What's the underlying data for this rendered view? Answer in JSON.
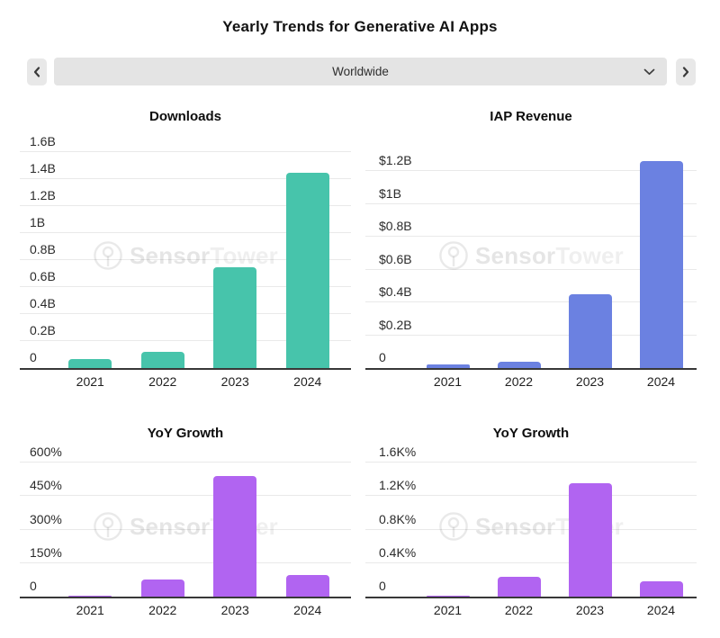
{
  "page": {
    "title": "Yearly Trends for Generative AI Apps"
  },
  "selector": {
    "value": "Worldwide",
    "prev_icon": "chevron-left",
    "next_icon": "chevron-right",
    "expand_icon": "chevron-down"
  },
  "watermark": {
    "part1": "Sensor",
    "part2": "Tower"
  },
  "colors": {
    "downloads_bar": "#47c4ab",
    "revenue_bar": "#6b81e1",
    "growth_bar": "#b164f1",
    "axis": "#383838",
    "gridline": "#e9e9e9"
  },
  "chart_data": [
    {
      "id": "downloads",
      "type": "bar",
      "title": "Downloads",
      "unit": "downloads (billions)",
      "categories": [
        "2021",
        "2022",
        "2023",
        "2024"
      ],
      "values": [
        0.07,
        0.12,
        0.75,
        1.45
      ],
      "bar_color": "#47c4ab",
      "ylim": [
        0,
        1.75
      ],
      "grid": true,
      "legend": "none",
      "yticks": [
        {
          "label": "1.6B",
          "value": 1.6
        },
        {
          "label": "1.4B",
          "value": 1.4
        },
        {
          "label": "1.2B",
          "value": 1.2
        },
        {
          "label": "1B",
          "value": 1.0
        },
        {
          "label": "0.8B",
          "value": 0.8
        },
        {
          "label": "0.6B",
          "value": 0.6
        },
        {
          "label": "0.4B",
          "value": 0.4
        },
        {
          "label": "0.2B",
          "value": 0.2
        },
        {
          "label": "0",
          "value": 0
        }
      ]
    },
    {
      "id": "iap_revenue",
      "type": "bar",
      "title": "IAP Revenue",
      "unit": "USD (billions)",
      "categories": [
        "2021",
        "2022",
        "2023",
        "2024"
      ],
      "values": [
        0.02,
        0.04,
        0.45,
        1.26
      ],
      "bar_color": "#6b81e1",
      "ylim": [
        0,
        1.32
      ],
      "grid": true,
      "legend": "none",
      "yticks": [
        {
          "label": "$1.2B",
          "value": 1.2
        },
        {
          "label": "$1B",
          "value": 1.0
        },
        {
          "label": "$0.8B",
          "value": 0.8
        },
        {
          "label": "$0.6B",
          "value": 0.6
        },
        {
          "label": "$0.4B",
          "value": 0.4
        },
        {
          "label": "$0.2B",
          "value": 0.2
        },
        {
          "label": "0",
          "value": 0
        }
      ]
    },
    {
      "id": "yoy_growth_downloads",
      "type": "bar",
      "title": "YoY Growth",
      "unit": "percent",
      "categories": [
        "2021",
        "2022",
        "2023",
        "2024"
      ],
      "values": [
        2,
        75,
        540,
        95
      ],
      "bar_color": "#b164f1",
      "ylim": [
        0,
        660
      ],
      "grid": true,
      "legend": "none",
      "yticks": [
        {
          "label": "600%",
          "value": 600
        },
        {
          "label": "450%",
          "value": 450
        },
        {
          "label": "300%",
          "value": 300
        },
        {
          "label": "150%",
          "value": 150
        },
        {
          "label": "0",
          "value": 0
        }
      ]
    },
    {
      "id": "yoy_growth_revenue",
      "type": "bar",
      "title": "YoY Growth",
      "unit": "percent",
      "categories": [
        "2021",
        "2022",
        "2023",
        "2024"
      ],
      "values": [
        15,
        240,
        1350,
        180
      ],
      "bar_color": "#b164f1",
      "ylim": [
        0,
        1760
      ],
      "grid": true,
      "legend": "none",
      "yticks": [
        {
          "label": "1.6K%",
          "value": 1600
        },
        {
          "label": "1.2K%",
          "value": 1200
        },
        {
          "label": "0.8K%",
          "value": 800
        },
        {
          "label": "0.4K%",
          "value": 400
        },
        {
          "label": "0",
          "value": 0
        }
      ]
    }
  ]
}
